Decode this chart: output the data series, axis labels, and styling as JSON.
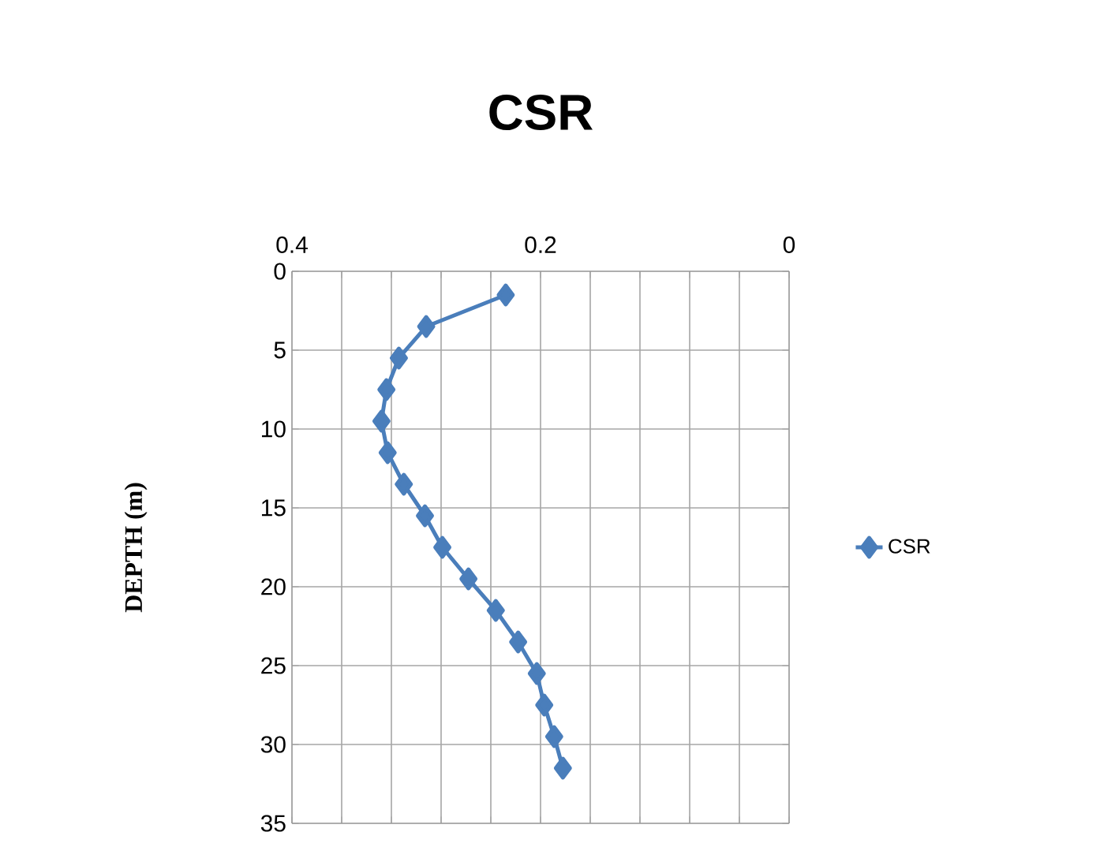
{
  "chart_data": {
    "type": "line",
    "title": "CSR",
    "ylabel": "DEPTH (m)",
    "x": [
      0.228,
      0.292,
      0.314,
      0.324,
      0.328,
      0.323,
      0.31,
      0.293,
      0.279,
      0.258,
      0.236,
      0.218,
      0.203,
      0.197,
      0.189,
      0.182
    ],
    "series": [
      {
        "name": "CSR",
        "color": "#4a7ebb",
        "values": [
          1.5,
          3.5,
          5.5,
          7.5,
          9.5,
          11.5,
          13.5,
          15.5,
          17.5,
          19.5,
          21.5,
          23.5,
          25.5,
          27.5,
          29.5,
          31.5
        ]
      }
    ],
    "xlim": [
      0.4,
      0
    ],
    "xticks": [
      0.4,
      {
        "value": 0.36,
        "label": null
      },
      {
        "value": 0.32,
        "label": null
      },
      {
        "value": 0.28,
        "label": null
      },
      {
        "value": 0.24,
        "label": null
      },
      0.2,
      {
        "value": 0.16,
        "label": null
      },
      {
        "value": 0.12,
        "label": null
      },
      {
        "value": 0.08,
        "label": null
      },
      {
        "value": 0.04,
        "label": null
      },
      0
    ],
    "ylim": [
      35,
      0
    ],
    "yticks": [
      0,
      5,
      10,
      15,
      20,
      25,
      30,
      35
    ],
    "grid": true,
    "legend": "right",
    "marker": "diamond",
    "line_style": "solid"
  }
}
